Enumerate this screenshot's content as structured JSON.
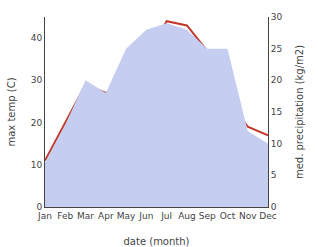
{
  "chart_data": {
    "type": "line",
    "categories": [
      "Jan",
      "Feb",
      "Mar",
      "Apr",
      "May",
      "Jun",
      "Jul",
      "Aug",
      "Sep",
      "Oct",
      "Nov",
      "Dec"
    ],
    "series": [
      {
        "type": "area",
        "axis": "y2",
        "color": "#c5cdf0",
        "values": [
          7,
          13,
          20,
          18,
          25,
          28,
          29,
          28,
          25,
          25,
          12,
          10
        ]
      },
      {
        "type": "line",
        "color": "#c0392b",
        "values": [
          11,
          20,
          29,
          27,
          27,
          35,
          44,
          43,
          37,
          26,
          19,
          17
        ]
      }
    ],
    "xlabel": "date (month)",
    "ylabel": "max temp (C)",
    "y2label": "med. precipitation (kg/m2)",
    "ylim": [
      0,
      45
    ],
    "yticks": [
      0,
      10,
      20,
      30,
      40
    ],
    "y2lim": [
      0,
      30
    ],
    "y2ticks": [
      0,
      5,
      10,
      15,
      20,
      25,
      30
    ],
    "grid": false
  }
}
